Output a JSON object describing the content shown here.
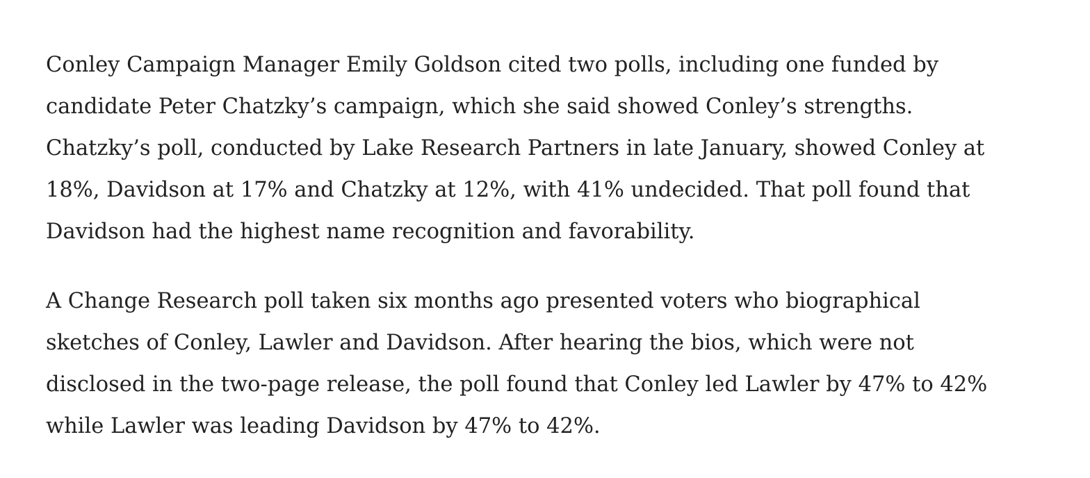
{
  "article": {
    "paragraphs": [
      {
        "lines": [
          "Conley Campaign Manager Emily Goldson cited two polls, including one funded by",
          "candidate Peter Chatzky’s campaign, which she said showed Conley’s strengths.",
          "Chatzky’s poll, conducted by Lake Research Partners in late January, showed Conley at",
          "18%, Davidson at 17% and Chatzky at 12%, with 41% undecided. That poll found that",
          "Davidson had the highest name recognition and favorability."
        ]
      },
      {
        "lines": [
          "A Change Research poll taken six months ago presented voters who biographical",
          "sketches of Conley, Lawler and Davidson. After hearing the bios, which were not",
          "disclosed in the two-page release, the poll found that Conley led Lawler by 47% to 42%",
          "while Lawler was leading Davidson by 47% to 42%."
        ]
      }
    ]
  }
}
